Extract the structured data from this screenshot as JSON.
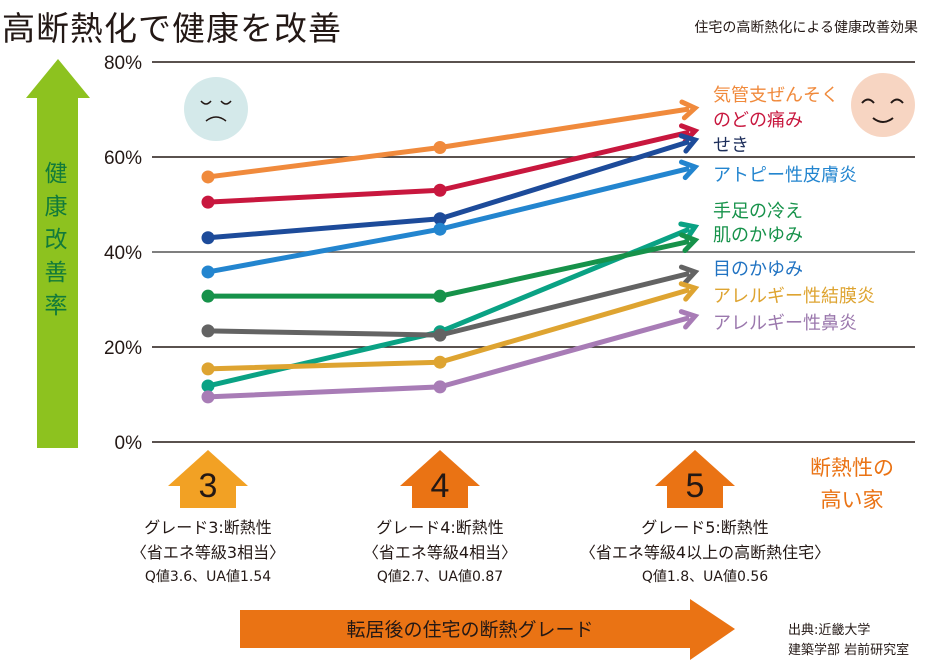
{
  "header": {
    "title": "高断熱化で健康を改善",
    "subtitle": "住宅の高断熱化による健康改善効果"
  },
  "y_axis_arrow_label": "健康改善率",
  "highlight_label": [
    "断熱性の",
    "高い家"
  ],
  "x_axis_arrow_label": "転居後の住宅の断熱グレード",
  "source": [
    "出典:近畿大学",
    "建築学部 岩前研究室"
  ],
  "faces": {
    "left": "sad-face-icon",
    "right": "happy-face-icon",
    "left_color": "#d4e9ea",
    "right_color": "#f7d5c2"
  },
  "grades": [
    {
      "number": "3",
      "line1": "グレード3:断熱性",
      "line2": "〈省エネ等級3相当〉",
      "line3": "Q値3.6、UA値1.54",
      "color": "#f2a124"
    },
    {
      "number": "4",
      "line1": "グレード4:断熱性",
      "line2": "〈省エネ等級4相当〉",
      "line3": "Q値2.7、UA値0.87",
      "color": "#ea7314"
    },
    {
      "number": "5",
      "line1": "グレード5:断熱性",
      "line2": "〈省エネ等級4以上の高断熱住宅〉",
      "line3": "Q値1.8、UA値0.56",
      "color": "#ea7314"
    }
  ],
  "colors": {
    "y_arrow": "#8dc21f",
    "x_arrow": "#ea7314",
    "gridline": "#231815"
  },
  "chart_data": {
    "type": "line",
    "title": "住宅の高断熱化による健康改善効果",
    "xlabel": "転居後の住宅の断熱グレード",
    "ylabel": "健康改善率",
    "categories": [
      "グレード3",
      "グレード4",
      "グレード5"
    ],
    "ylim": [
      0,
      80
    ],
    "yticks": [
      0,
      20,
      40,
      60,
      80
    ],
    "ytick_labels": [
      "0%",
      "20%",
      "40%",
      "60%",
      "80%"
    ],
    "grid": true,
    "legend_placement": "right",
    "series": [
      {
        "name": "気管支ぜんそく",
        "color": "#f08a3c",
        "values": [
          55.8,
          62.0,
          70.3
        ]
      },
      {
        "name": "のどの痛み",
        "color": "#c8173e",
        "values": [
          50.5,
          53.0,
          65.5
        ]
      },
      {
        "name": "せき",
        "color": "#1d4b9a",
        "values": [
          43.0,
          47.0,
          63.6
        ]
      },
      {
        "name": "アトピー性皮膚炎",
        "color": "#2385cf",
        "values": [
          35.8,
          44.8,
          57.9
        ]
      },
      {
        "name": "手足の冷え",
        "color": "#0aa284",
        "values": [
          11.8,
          23.2,
          45.3
        ]
      },
      {
        "name": "肌のかゆみ",
        "color": "#16924a",
        "values": [
          30.7,
          30.7,
          42.5
        ]
      },
      {
        "name": "目のかゆみ",
        "color": "#636363",
        "values": [
          23.4,
          22.5,
          35.8
        ]
      },
      {
        "name": "アレルギー性結膜炎",
        "color": "#dea431",
        "values": [
          15.4,
          16.8,
          32.4
        ]
      },
      {
        "name": "アレルギー性鼻炎",
        "color": "#a87cb6",
        "values": [
          9.5,
          11.6,
          26.5
        ]
      }
    ],
    "legend_text_colors": [
      "#f08a3c",
      "#c8173e",
      "#1c2d5a",
      "#2385cf",
      "#16924a",
      "#16924a",
      "#2173c2",
      "#dea431",
      "#9b78ad"
    ]
  }
}
